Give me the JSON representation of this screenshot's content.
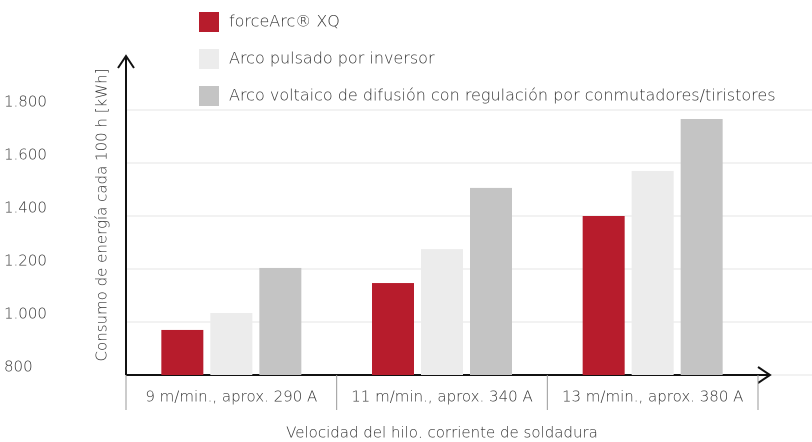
{
  "chart_data": {
    "type": "bar",
    "categories": [
      "9 m/min., aprox. 290 A",
      "11 m/min., aprox. 340 A",
      "13 m/min., aprox. 380 A"
    ],
    "series": [
      {
        "name": "forceArc® XQ",
        "color": "#b71c2c",
        "values": [
          970,
          1147,
          1400
        ]
      },
      {
        "name": "Arco pulsado por inversor",
        "color": "#ececec",
        "values": [
          1034,
          1275,
          1570
        ]
      },
      {
        "name": "Arco voltaico de difusión con regulación por conmutadores/tiristores",
        "color": "#c4c4c4",
        "values": [
          1204,
          1506,
          1766
        ]
      }
    ],
    "y_label": "Consumo de energía cada 100 h [kWh]",
    "x_label": "Velocidad del hilo, corriente de soldadura",
    "ylim": [
      800,
      1800
    ],
    "yticks": [
      800,
      {
        "value": 1000,
        "label": "1.000"
      },
      {
        "value": 1200,
        "label": "1.200"
      },
      {
        "value": 1400,
        "label": "1.400"
      },
      {
        "value": 1600,
        "label": "1.600"
      },
      {
        "value": 1800,
        "label": "1.800"
      }
    ],
    "grid": true
  }
}
